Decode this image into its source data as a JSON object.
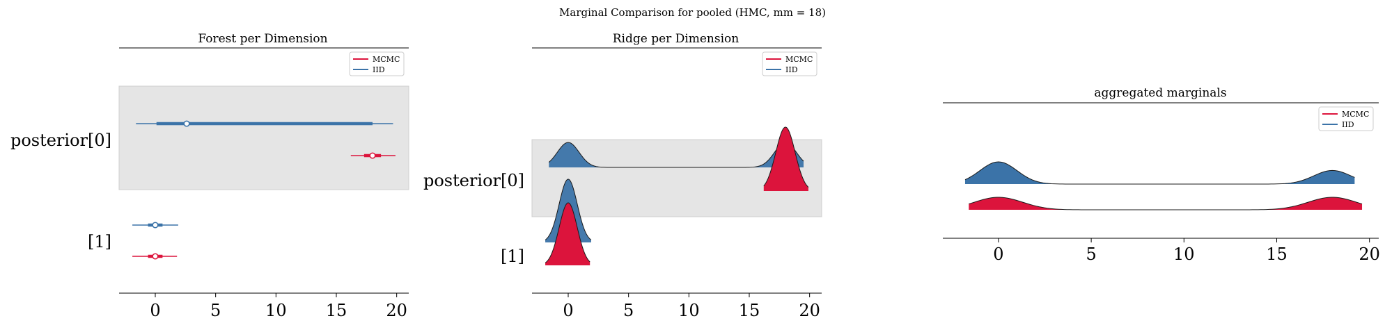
{
  "figure": {
    "suptitle": "Marginal Comparison for pooled (HMC, mm = 18)"
  },
  "colors": {
    "MCMC": "#dc143c",
    "IID": "#3b73a8",
    "highlight": "#e5e5e5"
  },
  "chart_data": [
    {
      "type": "forest",
      "title": "Forest per Dimension",
      "xlim": [
        -3,
        21
      ],
      "xticks": [
        0,
        5,
        10,
        15,
        20
      ],
      "ytick_labels": [
        "posterior[0]",
        "[1]"
      ],
      "legend": {
        "placement": "top-right",
        "entries": [
          "MCMC",
          "IID"
        ]
      },
      "highlighted_row": "posterior[0]",
      "series": [
        {
          "name": "IID",
          "row": "posterior[0]",
          "hdi_low": -1.6,
          "hdi_high": 19.7,
          "iqr_low": 0.1,
          "iqr_high": 18.0,
          "point": 2.6
        },
        {
          "name": "MCMC",
          "row": "posterior[0]",
          "hdi_low": 16.2,
          "hdi_high": 19.9,
          "iqr_low": 17.3,
          "iqr_high": 18.7,
          "point": 18.0
        },
        {
          "name": "IID",
          "row": "[1]",
          "hdi_low": -1.9,
          "hdi_high": 1.9,
          "iqr_low": -0.6,
          "iqr_high": 0.6,
          "point": 0.0
        },
        {
          "name": "MCMC",
          "row": "[1]",
          "hdi_low": -1.9,
          "hdi_high": 1.8,
          "iqr_low": -0.6,
          "iqr_high": 0.6,
          "point": 0.0
        }
      ]
    },
    {
      "type": "ridge",
      "title": "Ridge per Dimension",
      "xlim": [
        -3,
        21
      ],
      "xticks": [
        0,
        5,
        10,
        15,
        20
      ],
      "ytick_labels": [
        "posterior[0]",
        "[1]"
      ],
      "legend": {
        "placement": "top-right",
        "entries": [
          "MCMC",
          "IID"
        ]
      },
      "highlighted_row": "posterior[0]",
      "series": [
        {
          "name": "IID",
          "row": "posterior[0]",
          "x_range": [
            -1.6,
            19.5
          ],
          "components": [
            {
              "mean": 0,
              "sd": 0.9,
              "weight": 0.5
            },
            {
              "mean": 18,
              "sd": 0.9,
              "weight": 0.5
            }
          ]
        },
        {
          "name": "MCMC",
          "row": "posterior[0]",
          "x_range": [
            16.2,
            19.9
          ],
          "components": [
            {
              "mean": 18,
              "sd": 0.8,
              "weight": 1
            }
          ]
        },
        {
          "name": "IID",
          "row": "[1]",
          "x_range": [
            -1.9,
            1.9
          ],
          "components": [
            {
              "mean": 0,
              "sd": 0.75,
              "weight": 1
            }
          ]
        },
        {
          "name": "MCMC",
          "row": "[1]",
          "x_range": [
            -1.9,
            1.8
          ],
          "components": [
            {
              "mean": 0,
              "sd": 0.75,
              "weight": 1
            }
          ]
        }
      ]
    },
    {
      "type": "ridge",
      "title": "aggregated marginals",
      "xlim": [
        -3,
        20.5
      ],
      "xticks": [
        0,
        5,
        10,
        15,
        20
      ],
      "legend": {
        "placement": "top-right",
        "entries": [
          "MCMC",
          "IID"
        ]
      },
      "series": [
        {
          "name": "IID",
          "x_range": [
            -1.8,
            19.2
          ],
          "components": [
            {
              "mean": 0,
              "sd": 1.0,
              "weight": 0.62
            },
            {
              "mean": 18,
              "sd": 1.0,
              "weight": 0.38
            }
          ]
        },
        {
          "name": "MCMC",
          "x_range": [
            -1.6,
            19.6
          ],
          "components": [
            {
              "mean": 0,
              "sd": 1.3,
              "weight": 0.5
            },
            {
              "mean": 18,
              "sd": 1.3,
              "weight": 0.5
            }
          ]
        }
      ]
    }
  ]
}
